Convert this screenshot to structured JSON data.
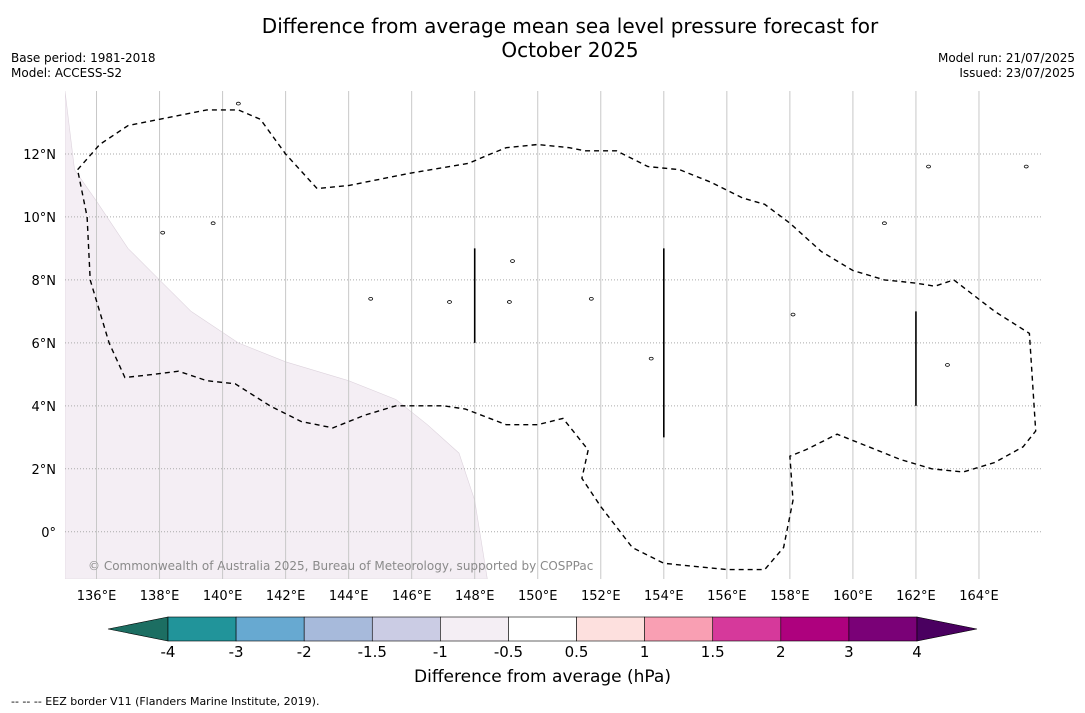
{
  "title_line1": "Difference from average mean sea level pressure forecast for",
  "title_line2": "October 2025",
  "meta_left": {
    "base_period": "Base period: 1981-2018",
    "model": "Model: ACCESS-S2"
  },
  "meta_right": {
    "model_run": "Model run: 21/07/2025",
    "issued": "Issued: 23/07/2025"
  },
  "copyright": "© Commonwealth of Australia 2025, Bureau of Meteorology, supported by COSPPac",
  "map": {
    "lon_range": [
      135,
      166
    ],
    "lat_range": [
      -1.5,
      14
    ],
    "lat_ticks": [
      {
        "value": 12,
        "label": "12°N"
      },
      {
        "value": 10,
        "label": "10°N"
      },
      {
        "value": 8,
        "label": "8°N"
      },
      {
        "value": 6,
        "label": "6°N"
      },
      {
        "value": 4,
        "label": "4°N"
      },
      {
        "value": 2,
        "label": "2°N"
      },
      {
        "value": 0,
        "label": "0°"
      }
    ],
    "lon_ticks": [
      {
        "value": 136,
        "label": "136°E"
      },
      {
        "value": 138,
        "label": "138°E"
      },
      {
        "value": 140,
        "label": "140°E"
      },
      {
        "value": 142,
        "label": "142°E"
      },
      {
        "value": 144,
        "label": "144°E"
      },
      {
        "value": 146,
        "label": "146°E"
      },
      {
        "value": 148,
        "label": "148°E"
      },
      {
        "value": 150,
        "label": "150°E"
      },
      {
        "value": 152,
        "label": "152°E"
      },
      {
        "value": 154,
        "label": "154°E"
      },
      {
        "value": 156,
        "label": "156°E"
      },
      {
        "value": 158,
        "label": "158°E"
      },
      {
        "value": 160,
        "label": "160°E"
      },
      {
        "value": 162,
        "label": "162°E"
      },
      {
        "value": 164,
        "label": "164°E"
      }
    ],
    "shaded_region": {
      "class": "-1 to -0.5",
      "color": "#f4eef4",
      "boundary": [
        [
          135.0,
          14
        ],
        [
          135.3,
          11.5
        ],
        [
          136.0,
          10.5
        ],
        [
          137.0,
          9.0
        ],
        [
          138.0,
          8.0
        ],
        [
          139.0,
          7.0
        ],
        [
          140.5,
          6.0
        ],
        [
          142.0,
          5.4
        ],
        [
          144.0,
          4.8
        ],
        [
          145.5,
          4.2
        ],
        [
          146.5,
          3.4
        ],
        [
          147.5,
          2.5
        ],
        [
          148.0,
          1.0
        ],
        [
          148.4,
          -1.5
        ],
        [
          135.0,
          -1.5
        ]
      ]
    },
    "eez_boundary": [
      [
        135.4,
        11.5
      ],
      [
        136.1,
        12.3
      ],
      [
        137.0,
        12.9
      ],
      [
        138.0,
        13.1
      ],
      [
        139.5,
        13.4
      ],
      [
        140.5,
        13.4
      ],
      [
        141.2,
        13.1
      ],
      [
        142.0,
        12.0
      ],
      [
        143.0,
        10.9
      ],
      [
        144.0,
        11.0
      ],
      [
        146.0,
        11.4
      ],
      [
        147.8,
        11.7
      ],
      [
        148.5,
        12.0
      ],
      [
        149.0,
        12.2
      ],
      [
        150.0,
        12.3
      ],
      [
        151.0,
        12.2
      ],
      [
        151.5,
        12.1
      ],
      [
        152.5,
        12.1
      ],
      [
        153.5,
        11.6
      ],
      [
        154.5,
        11.5
      ],
      [
        155.5,
        11.1
      ],
      [
        156.5,
        10.6
      ],
      [
        157.2,
        10.4
      ],
      [
        158.0,
        9.8
      ],
      [
        159.0,
        8.9
      ],
      [
        160.0,
        8.3
      ],
      [
        161.0,
        8.0
      ],
      [
        162.0,
        7.9
      ],
      [
        162.6,
        7.8
      ],
      [
        163.2,
        8.0
      ],
      [
        164.5,
        7.0
      ],
      [
        165.6,
        6.3
      ],
      [
        165.8,
        3.2
      ],
      [
        165.4,
        2.7
      ],
      [
        164.5,
        2.2
      ],
      [
        163.5,
        1.9
      ],
      [
        162.5,
        2.0
      ],
      [
        161.5,
        2.3
      ],
      [
        160.5,
        2.7
      ],
      [
        159.5,
        3.1
      ],
      [
        158.5,
        2.6
      ],
      [
        158.0,
        2.4
      ],
      [
        158.1,
        1.0
      ],
      [
        157.8,
        -0.5
      ],
      [
        157.2,
        -1.2
      ],
      [
        156.0,
        -1.2
      ],
      [
        154.0,
        -1.0
      ],
      [
        153.0,
        -0.5
      ],
      [
        152.0,
        0.8
      ],
      [
        151.4,
        1.7
      ],
      [
        151.6,
        2.6
      ],
      [
        151.2,
        3.1
      ],
      [
        150.8,
        3.6
      ],
      [
        150.0,
        3.4
      ],
      [
        149.0,
        3.4
      ],
      [
        147.7,
        3.9
      ],
      [
        147.0,
        4.0
      ],
      [
        146.3,
        4.0
      ],
      [
        145.5,
        4.0
      ],
      [
        144.5,
        3.7
      ],
      [
        143.5,
        3.3
      ],
      [
        142.5,
        3.5
      ],
      [
        141.5,
        4.0
      ],
      [
        140.4,
        4.7
      ],
      [
        139.5,
        4.8
      ],
      [
        138.6,
        5.1
      ],
      [
        137.8,
        5.0
      ],
      [
        136.9,
        4.9
      ],
      [
        136.4,
        6.0
      ],
      [
        135.8,
        8.0
      ],
      [
        135.7,
        10.0
      ],
      [
        135.4,
        11.5
      ]
    ],
    "meridian_segments": [
      {
        "lon": 148,
        "lat_from": 6.0,
        "lat_to": 9.0
      },
      {
        "lon": 154,
        "lat_from": 3.0,
        "lat_to": 9.0
      },
      {
        "lon": 162,
        "lat_from": 4.0,
        "lat_to": 7.0
      }
    ],
    "islands": [
      [
        140.5,
        13.6
      ],
      [
        138.1,
        9.5
      ],
      [
        151.7,
        7.4
      ],
      [
        158.1,
        6.9
      ],
      [
        163.0,
        5.3
      ],
      [
        153.6,
        5.5
      ],
      [
        149.2,
        8.6
      ],
      [
        144.7,
        7.4
      ],
      [
        147.2,
        7.3
      ],
      [
        149.1,
        7.3
      ],
      [
        162.4,
        11.6
      ],
      [
        165.5,
        11.6
      ],
      [
        161.0,
        9.8
      ],
      [
        139.7,
        9.8
      ]
    ]
  },
  "colorbar": {
    "colors": [
      "#1c6e62",
      "#21949a",
      "#67a9d1",
      "#a7badb",
      "#cbcce4",
      "#f4eef4",
      "#ffffff",
      "#fde0de",
      "#f99fb3",
      "#d6399b",
      "#ae017e",
      "#7a0177",
      "#4a0060"
    ],
    "tick_labels": [
      "-4",
      "-3",
      "-2",
      "-1.5",
      "-1",
      "-0.5",
      "0.5",
      "1",
      "1.5",
      "2",
      "3",
      "4"
    ],
    "label": "Difference from average (hPa)"
  },
  "footnote": "--  --  -- EEZ border V11 (Flanders Marine Institute, 2019)."
}
